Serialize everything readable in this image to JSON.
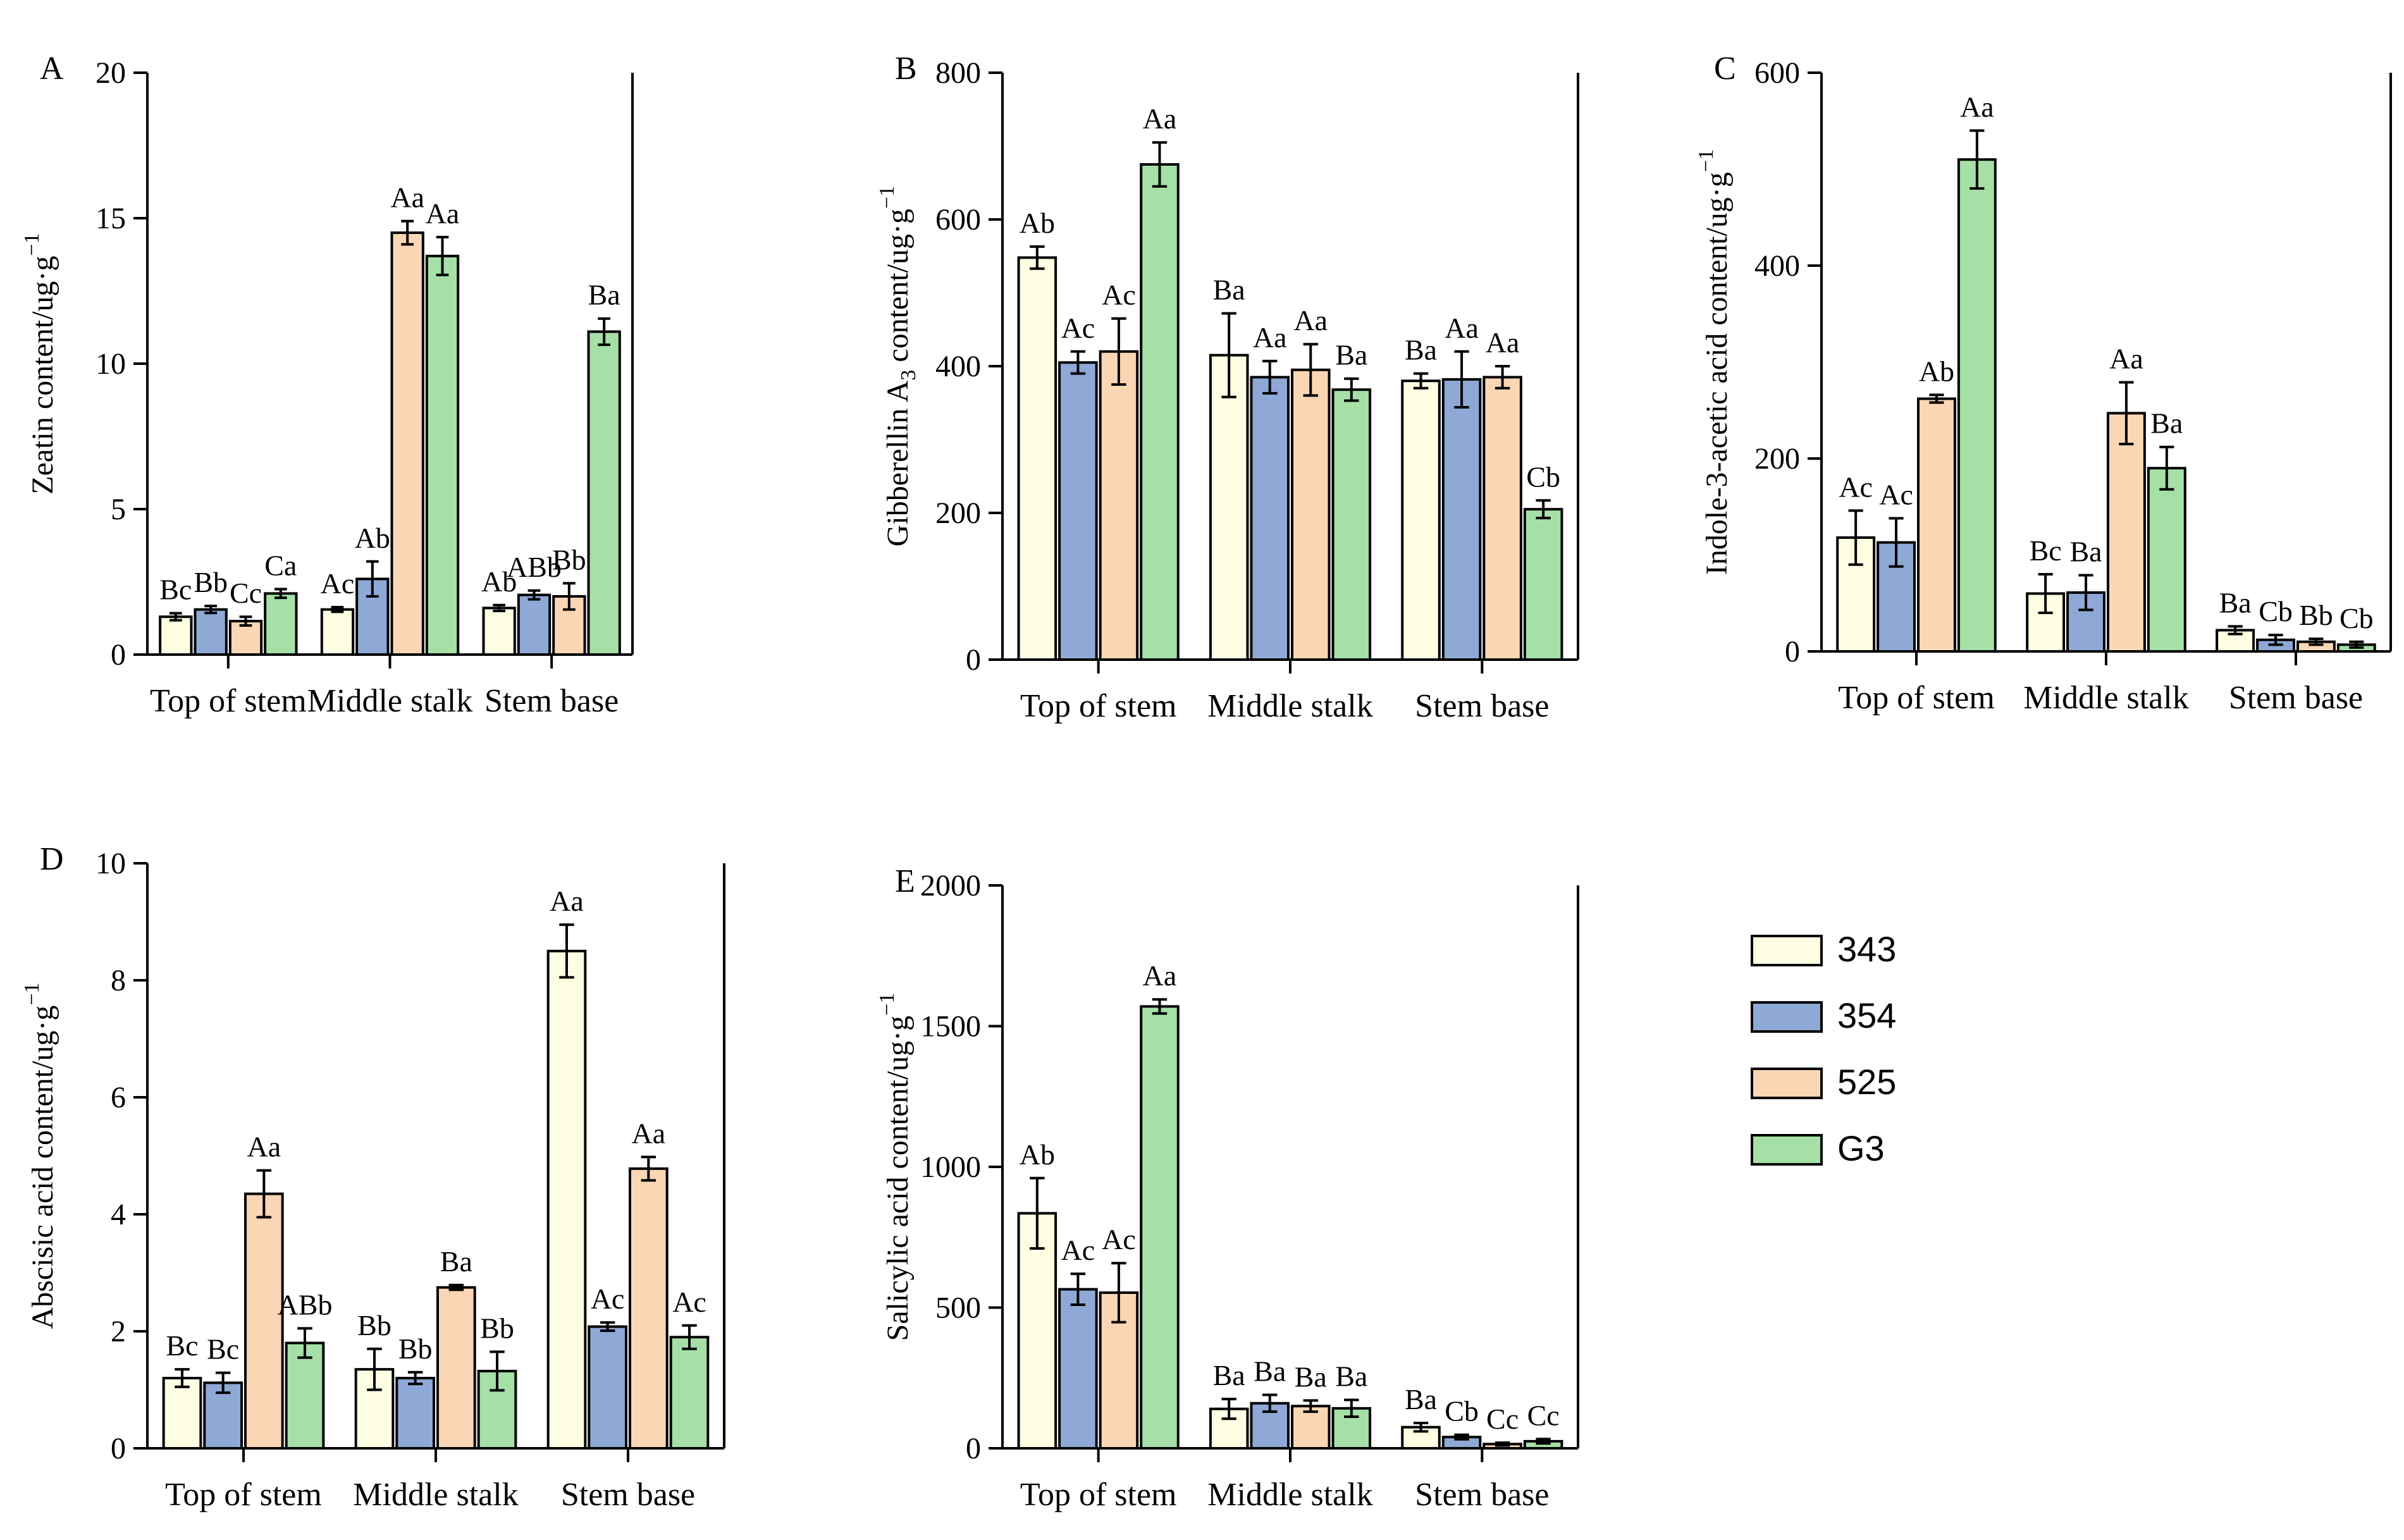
{
  "colors": {
    "343": "#fefee3",
    "354": "#8ea9d6",
    "525": "#fbd6b5",
    "G3": "#a6e0a7"
  },
  "legend": {
    "items": [
      {
        "label": "343",
        "color": "#fefee3"
      },
      {
        "label": "354",
        "color": "#8ea9d6"
      },
      {
        "label": "525",
        "color": "#fbd6b5"
      },
      {
        "label": "G3",
        "color": "#a6e0a7"
      }
    ]
  },
  "chart_data": [
    {
      "type": "bar",
      "panel": "A",
      "ylabel_main": "Zeatin content/ug·g",
      "ylabel_sub": "",
      "ylabel_post": "",
      "ylabel_sup": "−1",
      "categories": [
        "Top of stem",
        "Middle stalk",
        "Stem base"
      ],
      "ylim": [
        0,
        20
      ],
      "yticks": [
        0,
        5,
        10,
        15,
        20
      ],
      "series": [
        {
          "name": "343",
          "values": [
            1.3,
            1.55,
            1.6
          ],
          "errors": [
            0.12,
            0.08,
            0.1
          ],
          "letters": [
            "Bc",
            "Ac",
            "Ab"
          ]
        },
        {
          "name": "354",
          "values": [
            1.55,
            2.6,
            2.05
          ],
          "errors": [
            0.12,
            0.6,
            0.15
          ],
          "letters": [
            "Bb",
            "Ab",
            "ABb"
          ]
        },
        {
          "name": "525",
          "values": [
            1.15,
            14.5,
            2.0
          ],
          "errors": [
            0.15,
            0.4,
            0.45
          ],
          "letters": [
            "Cc",
            "Aa",
            "Bb"
          ]
        },
        {
          "name": "G3",
          "values": [
            2.1,
            13.7,
            11.1
          ],
          "errors": [
            0.15,
            0.65,
            0.45
          ],
          "letters": [
            "Ca",
            "Aa",
            "Ba"
          ]
        }
      ]
    },
    {
      "type": "bar",
      "panel": "B",
      "ylabel_main": "Gibberellin A",
      "ylabel_sub": "3",
      "ylabel_post": " content/ug·g",
      "ylabel_sup": "−1",
      "categories": [
        "Top of stem",
        "Middle stalk",
        "Stem base"
      ],
      "ylim": [
        0,
        800
      ],
      "yticks": [
        0,
        200,
        400,
        600,
        800
      ],
      "series": [
        {
          "name": "343",
          "values": [
            548,
            415,
            380
          ],
          "errors": [
            15,
            57,
            10
          ],
          "letters": [
            "Ab",
            "Ba",
            "Ba"
          ]
        },
        {
          "name": "354",
          "values": [
            405,
            385,
            382
          ],
          "errors": [
            15,
            22,
            38
          ],
          "letters": [
            "Ac",
            "Aa",
            "Aa"
          ]
        },
        {
          "name": "525",
          "values": [
            420,
            395,
            385
          ],
          "errors": [
            45,
            35,
            15
          ],
          "letters": [
            "Ac",
            "Aa",
            "Aa"
          ]
        },
        {
          "name": "G3",
          "values": [
            675,
            368,
            205
          ],
          "errors": [
            30,
            15,
            12
          ],
          "letters": [
            "Aa",
            "Ba",
            "Cb"
          ]
        }
      ]
    },
    {
      "type": "bar",
      "panel": "C",
      "ylabel_main": "Indole-3-acetic acid content/ug·g",
      "ylabel_sub": "",
      "ylabel_post": "",
      "ylabel_sup": "−1",
      "categories": [
        "Top of stem",
        "Middle stalk",
        "Stem base"
      ],
      "ylim": [
        0,
        600
      ],
      "yticks": [
        0,
        200,
        400,
        600
      ],
      "series": [
        {
          "name": "343",
          "values": [
            118,
            60,
            22
          ],
          "errors": [
            28,
            20,
            4
          ],
          "letters": [
            "Ac",
            "Bc",
            "Ba"
          ]
        },
        {
          "name": "354",
          "values": [
            113,
            61,
            12
          ],
          "errors": [
            25,
            18,
            5
          ],
          "letters": [
            "Ac",
            "Ba",
            "Cb"
          ]
        },
        {
          "name": "525",
          "values": [
            262,
            247,
            10
          ],
          "errors": [
            4,
            32,
            3
          ],
          "letters": [
            "Ab",
            "Aa",
            "Bb"
          ]
        },
        {
          "name": "G3",
          "values": [
            510,
            190,
            7
          ],
          "errors": [
            30,
            22,
            3
          ],
          "letters": [
            "Aa",
            "Ba",
            "Cb"
          ]
        }
      ]
    },
    {
      "type": "bar",
      "panel": "D",
      "ylabel_main": "Abscisic acid content/ug·g",
      "ylabel_sub": "",
      "ylabel_post": "",
      "ylabel_sup": "−1",
      "categories": [
        "Top of stem",
        "Middle stalk",
        "Stem base"
      ],
      "ylim": [
        0,
        10
      ],
      "yticks": [
        0,
        2,
        4,
        6,
        8,
        10
      ],
      "series": [
        {
          "name": "343",
          "values": [
            1.2,
            1.35,
            8.5
          ],
          "errors": [
            0.15,
            0.35,
            0.45
          ],
          "letters": [
            "Bc",
            "Bb",
            "Aa"
          ]
        },
        {
          "name": "354",
          "values": [
            1.12,
            1.2,
            2.08
          ],
          "errors": [
            0.17,
            0.1,
            0.07
          ],
          "letters": [
            "Bc",
            "Bb",
            "Ac"
          ]
        },
        {
          "name": "525",
          "values": [
            4.35,
            2.75,
            4.78
          ],
          "errors": [
            0.4,
            0.04,
            0.2
          ],
          "letters": [
            "Aa",
            "Ba",
            "Aa"
          ]
        },
        {
          "name": "G3",
          "values": [
            1.8,
            1.32,
            1.9
          ],
          "errors": [
            0.25,
            0.33,
            0.2
          ],
          "letters": [
            "ABb",
            "Bb",
            "Ac"
          ]
        }
      ]
    },
    {
      "type": "bar",
      "panel": "E",
      "ylabel_main": "Salicylic acid content/ug·g",
      "ylabel_sub": "",
      "ylabel_post": "",
      "ylabel_sup": "−1",
      "categories": [
        "Top of stem",
        "Middle stalk",
        "Stem base"
      ],
      "ylim": [
        0,
        2000
      ],
      "yticks": [
        0,
        500,
        1000,
        1500,
        2000
      ],
      "series": [
        {
          "name": "343",
          "values": [
            835,
            140,
            75
          ],
          "errors": [
            125,
            35,
            15
          ],
          "letters": [
            "Ab",
            "Ba",
            "Ba"
          ]
        },
        {
          "name": "354",
          "values": [
            565,
            160,
            40
          ],
          "errors": [
            55,
            30,
            8
          ],
          "letters": [
            "Ac",
            "Ba",
            "Cb"
          ]
        },
        {
          "name": "525",
          "values": [
            553,
            150,
            15
          ],
          "errors": [
            105,
            20,
            5
          ],
          "letters": [
            "Ac",
            "Ba",
            "Cc"
          ]
        },
        {
          "name": "G3",
          "values": [
            1570,
            142,
            25
          ],
          "errors": [
            25,
            30,
            8
          ],
          "letters": [
            "Aa",
            "Ba",
            "Cc"
          ]
        }
      ]
    }
  ]
}
